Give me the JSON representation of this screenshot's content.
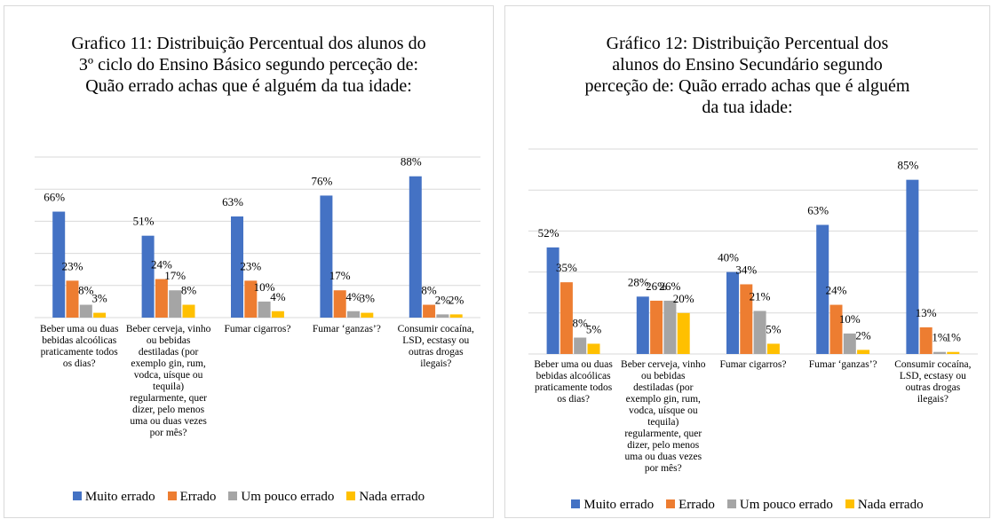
{
  "chart_data": [
    {
      "type": "bar",
      "title": "Grafico 11: Distribuição Percentual dos alunos do 3º ciclo do Ensino Básico segundo perceção de: Quão errado achas que é alguém da tua idade:",
      "categories": [
        "Beber uma ou duas bebidas alcoólicas praticamente todos os dias?",
        "Beber cerveja, vinho ou bebidas destiladas (por exemplo gin, rum, vodca, uísque ou tequila) regularmente, quer dizer, pelo menos uma ou duas vezes por mês?",
        "Fumar cigarros?",
        "Fumar ‘ganzas’?",
        "Consumir cocaína, LSD, ecstasy ou outras drogas ilegais?"
      ],
      "series": [
        {
          "name": "Muito errado",
          "color": "#4472c4",
          "values": [
            66,
            51,
            63,
            76,
            88
          ],
          "value_labels": [
            "66%",
            "51%",
            "63%",
            "76%",
            "88%"
          ]
        },
        {
          "name": "Errado",
          "color": "#ed7d31",
          "values": [
            23,
            24,
            23,
            17,
            8
          ],
          "value_labels": [
            "23%",
            "24%",
            "23%",
            "17%",
            "8%"
          ]
        },
        {
          "name": "Um pouco errado",
          "color": "#a5a5a5",
          "values": [
            8,
            17,
            10,
            4,
            2
          ],
          "value_labels": [
            "8%",
            "17%",
            "10%",
            "4%",
            "2%"
          ]
        },
        {
          "name": "Nada errado",
          "color": "#ffc000",
          "values": [
            3,
            8,
            4,
            3,
            2
          ],
          "value_labels": [
            "3%",
            "8%",
            "4%",
            "3%",
            "2%"
          ]
        }
      ],
      "ylim": [
        0,
        100
      ],
      "yticks": [
        0,
        20,
        40,
        60,
        80,
        100
      ],
      "grid": true,
      "legend": "bottom"
    },
    {
      "type": "bar",
      "title": "Gráfico 12: Distribuição Percentual dos alunos do Ensino Secundário segundo perceção de: Quão errado achas que é alguém da tua idade:",
      "categories": [
        "Beber uma ou duas bebidas alcoólicas praticamente todos os dias?",
        "Beber cerveja, vinho ou bebidas destiladas (por exemplo gin, rum, vodca, uísque ou tequila) regularmente, quer dizer, pelo menos uma ou duas vezes por mês?",
        "Fumar cigarros?",
        "Fumar ‘ganzas’?",
        "Consumir cocaína, LSD, ecstasy ou outras drogas ilegais?"
      ],
      "series": [
        {
          "name": "Muito errado",
          "color": "#4472c4",
          "values": [
            52,
            28,
            40,
            63,
            85
          ],
          "value_labels": [
            "52%",
            "28%",
            "40%",
            "63%",
            "85%"
          ]
        },
        {
          "name": "Errado",
          "color": "#ed7d31",
          "values": [
            35,
            26,
            34,
            24,
            13
          ],
          "value_labels": [
            "35%",
            "26%",
            "34%",
            "24%",
            "13%"
          ]
        },
        {
          "name": "Um pouco errado",
          "color": "#a5a5a5",
          "values": [
            8,
            26,
            21,
            10,
            1
          ],
          "value_labels": [
            "8%",
            "26%",
            "21%",
            "10%",
            "1%"
          ]
        },
        {
          "name": "Nada errado",
          "color": "#ffc000",
          "values": [
            5,
            20,
            5,
            2,
            1
          ],
          "value_labels": [
            "5%",
            "20%",
            "5%",
            "2%",
            "1%"
          ]
        }
      ],
      "ylim": [
        0,
        100
      ],
      "yticks": [
        0,
        20,
        40,
        60,
        80,
        100
      ],
      "grid": true,
      "legend": "bottom"
    }
  ]
}
